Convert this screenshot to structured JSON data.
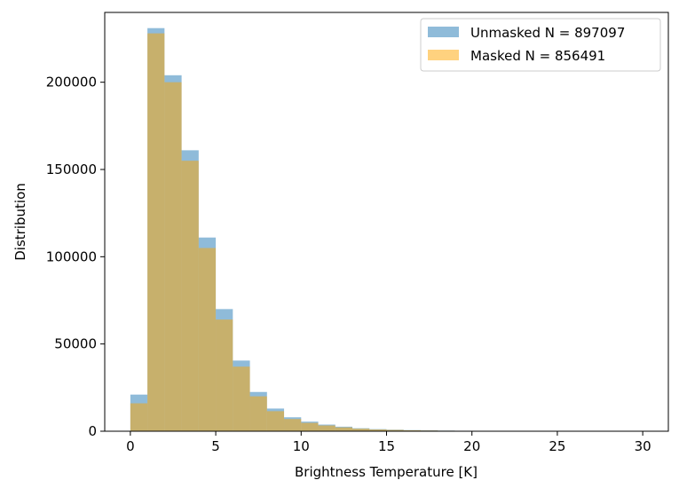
{
  "chart_data": {
    "type": "bar",
    "subtype": "histogram-overlay",
    "title": "",
    "xlabel": "Brightness Temperature [K]",
    "ylabel": "Distribution",
    "xlim": [
      -1.5,
      31.5
    ],
    "ylim": [
      0,
      240000
    ],
    "xticks": [
      0,
      5,
      10,
      15,
      20,
      25,
      30
    ],
    "yticks": [
      0,
      50000,
      100000,
      150000,
      200000
    ],
    "bin_edges": [
      0,
      1,
      2,
      3,
      4,
      5,
      6,
      7,
      8,
      9,
      10,
      11,
      12,
      13,
      14,
      15,
      16,
      17,
      18,
      19,
      20,
      21,
      22,
      23,
      24,
      25,
      26,
      27,
      28,
      29,
      30
    ],
    "series": [
      {
        "name": "Unmasked N = 897097",
        "color": "#1f77b4",
        "opacity": 0.5,
        "values": [
          21000,
          231000,
          204000,
          161000,
          111000,
          70000,
          40500,
          22500,
          13000,
          8000,
          5500,
          3800,
          2600,
          1700,
          1200,
          900,
          650,
          480,
          350,
          260,
          200,
          150,
          110,
          80,
          60,
          45,
          35,
          25,
          20,
          15
        ]
      },
      {
        "name": "Masked N = 856491",
        "color": "#ffa500",
        "opacity": 0.5,
        "values": [
          16000,
          228000,
          200000,
          155000,
          105000,
          64000,
          37000,
          20000,
          11500,
          7000,
          4800,
          3300,
          2200,
          1450,
          1000,
          750,
          540,
          400,
          290,
          215,
          165,
          125,
          90,
          65,
          50,
          37,
          28,
          20,
          16,
          12
        ]
      }
    ],
    "grid": false,
    "legend_position": "top-right"
  }
}
